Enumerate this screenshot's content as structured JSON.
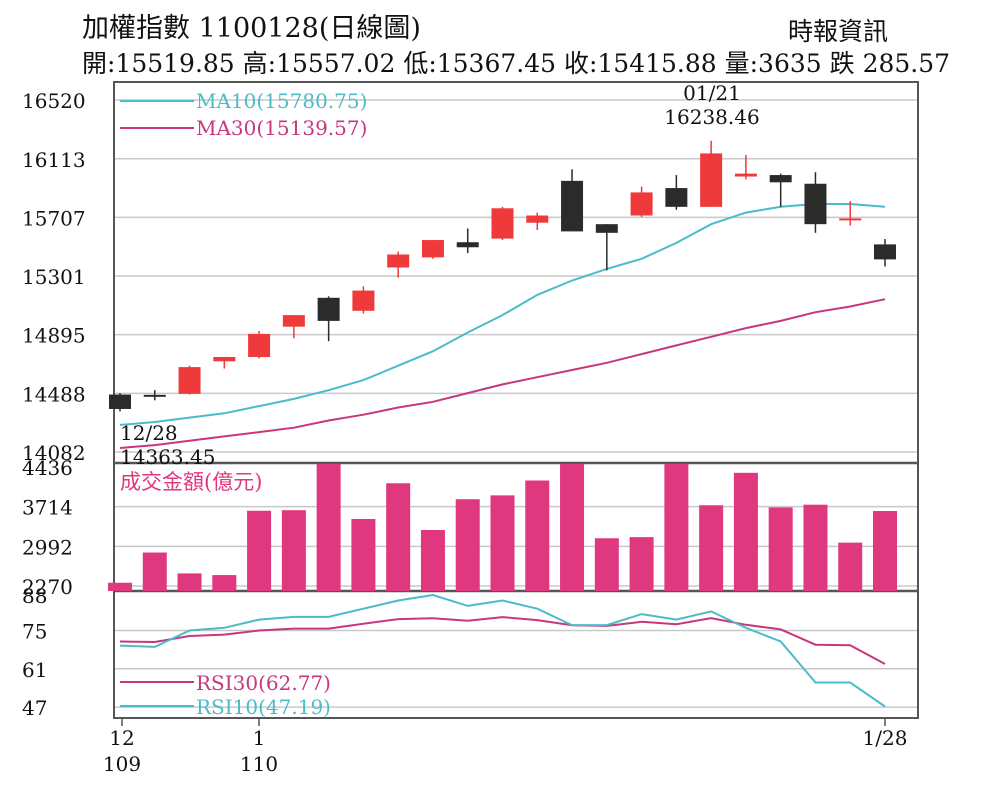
{
  "header": {
    "title": "加權指數 1100128(日線圖)",
    "source": "時報資訊",
    "stats": "開:15519.85 高:15557.02 低:15367.45 收:15415.88 量:3635 跌 285.57"
  },
  "colors": {
    "up": "#ee3a3a",
    "down": "#2b2b2b",
    "volume": "#e0387f",
    "ma10": "#4bbcc7",
    "ma30": "#c8367e",
    "rsi10": "#4bbcc7",
    "rsi30": "#c8367e",
    "grid": "#c9c9c9",
    "frame": "#555555"
  },
  "chart_data": [
    {
      "type": "candlestick",
      "title": "加權指數 1100128(日線圖)",
      "ylim": [
        14082,
        16520
      ],
      "yticks": [
        "16520",
        "16113",
        "15707",
        "15301",
        "14895",
        "14488",
        "14082"
      ],
      "legend": [
        "MA10(15780.75)",
        "MA30(15139.57)"
      ],
      "annotations": [
        {
          "label": "01/21",
          "value": "16238.46"
        },
        {
          "label": "12/28",
          "value": "14363.45"
        }
      ],
      "candles": [
        {
          "o": 14480,
          "h": 14490,
          "l": 14363,
          "c": 14380
        },
        {
          "o": 14478,
          "h": 14510,
          "l": 14440,
          "c": 14472
        },
        {
          "o": 14485,
          "h": 14680,
          "l": 14480,
          "c": 14670
        },
        {
          "o": 14710,
          "h": 14740,
          "l": 14660,
          "c": 14740
        },
        {
          "o": 14740,
          "h": 14920,
          "l": 14730,
          "c": 14900
        },
        {
          "o": 14950,
          "h": 15030,
          "l": 14870,
          "c": 15030
        },
        {
          "o": 15150,
          "h": 15160,
          "l": 14850,
          "c": 14990
        },
        {
          "o": 15060,
          "h": 15230,
          "l": 15040,
          "c": 15200
        },
        {
          "o": 15360,
          "h": 15470,
          "l": 15290,
          "c": 15450
        },
        {
          "o": 15430,
          "h": 15550,
          "l": 15420,
          "c": 15550
        },
        {
          "o": 15535,
          "h": 15630,
          "l": 15460,
          "c": 15500
        },
        {
          "o": 15560,
          "h": 15780,
          "l": 15550,
          "c": 15770
        },
        {
          "o": 15670,
          "h": 15740,
          "l": 15620,
          "c": 15720
        },
        {
          "o": 15960,
          "h": 16040,
          "l": 15610,
          "c": 15610
        },
        {
          "o": 15660,
          "h": 15660,
          "l": 15340,
          "c": 15600
        },
        {
          "o": 15720,
          "h": 15920,
          "l": 15710,
          "c": 15880
        },
        {
          "o": 15910,
          "h": 16000,
          "l": 15760,
          "c": 15780
        },
        {
          "o": 15780,
          "h": 16238,
          "l": 15780,
          "c": 16150
        },
        {
          "o": 15990,
          "h": 16140,
          "l": 15970,
          "c": 16010
        },
        {
          "o": 16000,
          "h": 16010,
          "l": 15780,
          "c": 15950
        },
        {
          "o": 15940,
          "h": 16020,
          "l": 15600,
          "c": 15660
        },
        {
          "o": 15690,
          "h": 15820,
          "l": 15650,
          "c": 15700
        },
        {
          "o": 15520,
          "h": 15557,
          "l": 15367,
          "c": 15416
        }
      ],
      "ma10": [
        14270,
        14290,
        14320,
        14350,
        14400,
        14450,
        14510,
        14580,
        14680,
        14780,
        14910,
        15030,
        15170,
        15270,
        15350,
        15420,
        15530,
        15660,
        15740,
        15780,
        15800,
        15800,
        15781
      ],
      "ma30": [
        14110,
        14130,
        14160,
        14190,
        14220,
        14250,
        14300,
        14340,
        14390,
        14430,
        14490,
        14550,
        14600,
        14650,
        14700,
        14760,
        14820,
        14880,
        14940,
        14990,
        15050,
        15090,
        15140
      ]
    },
    {
      "type": "bar",
      "title": "成交金額(億元)",
      "yticks": [
        "4436",
        "3714",
        "2992",
        "2270"
      ],
      "ylim": [
        2180,
        4436
      ],
      "values": [
        2330,
        2880,
        2500,
        2470,
        3640,
        3650,
        4536,
        3490,
        4140,
        3290,
        3850,
        3920,
        4190,
        4536,
        3140,
        3160,
        4520,
        3740,
        4330,
        3700,
        3750,
        3060,
        3635
      ]
    },
    {
      "type": "line",
      "yticks": [
        "88",
        "75",
        "61",
        "47"
      ],
      "ylim": [
        43,
        88
      ],
      "x_labels": [
        {
          "top": "12",
          "bottom": "109"
        },
        {
          "top": "1",
          "bottom": "110"
        },
        {
          "top": "1/28",
          "bottom": ""
        }
      ],
      "series": [
        {
          "name": "RSI30(62.77)",
          "values": [
            71,
            70.8,
            73,
            73.5,
            75,
            75.7,
            75.7,
            77.5,
            79.2,
            79.5,
            78.6,
            79.9,
            78.8,
            76.9,
            76.7,
            78.2,
            77.3,
            79.5,
            77.1,
            75.4,
            69.8,
            69.6,
            62.77
          ]
        },
        {
          "name": "RSI10(47.19)",
          "values": [
            69.5,
            69,
            75,
            76,
            79,
            80,
            80,
            83,
            86,
            88,
            84,
            86,
            83,
            77,
            77,
            81,
            79,
            82,
            76,
            71,
            56,
            56,
            47.19
          ]
        }
      ]
    }
  ]
}
